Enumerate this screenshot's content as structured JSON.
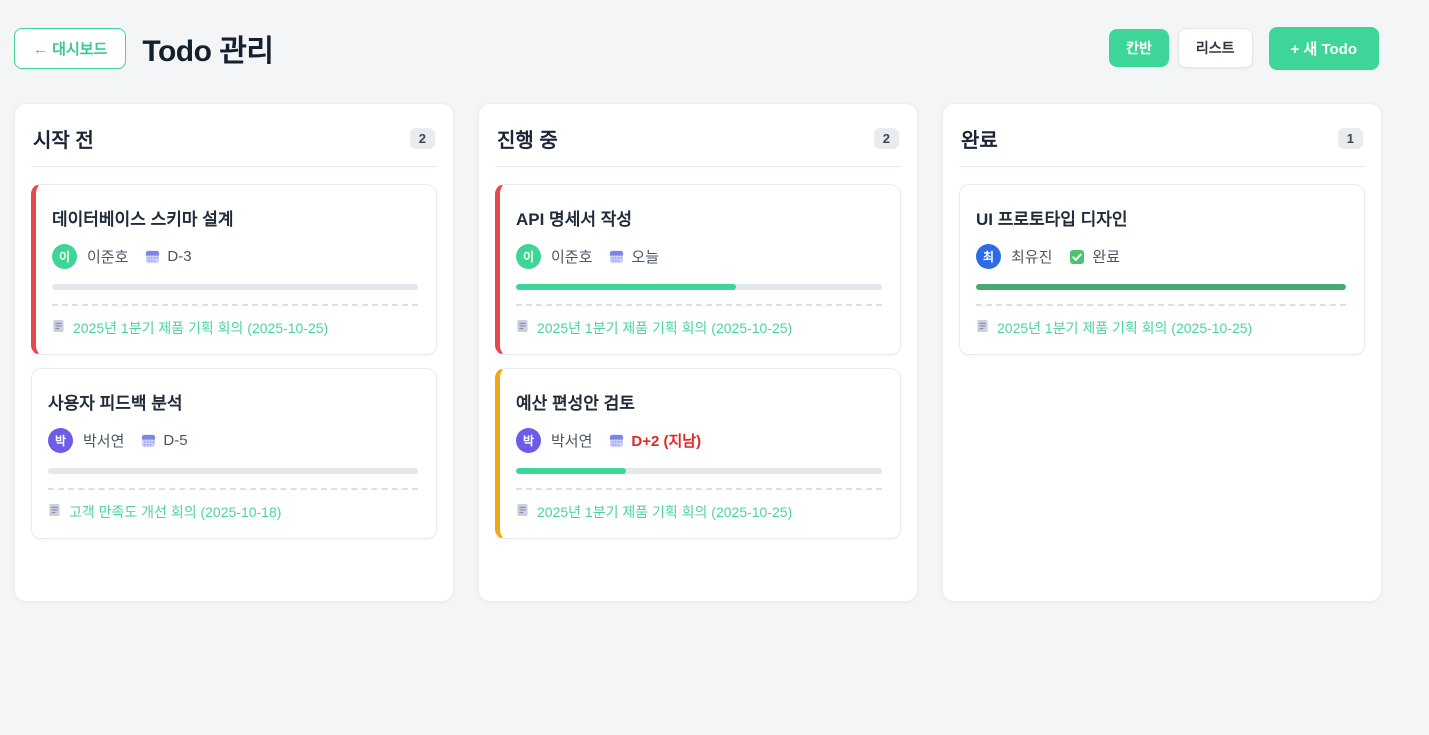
{
  "header": {
    "back_label": "← 대시보드",
    "title": "Todo 관리",
    "view_kanban_label": "칸반",
    "view_list_label": "리스트",
    "new_todo_label": "+ 새 Todo"
  },
  "colors": {
    "accent_mint": "#3ed598",
    "overdue_red": "#e12626",
    "card_accent_red": "#e5484d",
    "card_accent_amber": "#f2a516",
    "progress_done_green": "#48a873",
    "avatar_green": "#3ed598",
    "avatar_purple": "#6c5ce7",
    "avatar_blue": "#2d6ce5"
  },
  "icons": {
    "calendar": "calendar-grid",
    "memo": "document-page",
    "check": "green-checkbox"
  },
  "board": {
    "columns": [
      {
        "title": "시작 전",
        "count": "2",
        "cards": [
          {
            "title": "데이터베이스 스키마 설계",
            "avatar": "이",
            "avatar_color": "#3ed598",
            "assignee": "이준호",
            "due": "D-3",
            "overdue": false,
            "progress": 0,
            "progress_color": "#3ed598",
            "accent": "#e5484d",
            "memo": "2025년 1분기 제품 기획 회의 (2025-10-25)"
          },
          {
            "title": "사용자 피드백 분석",
            "avatar": "박",
            "avatar_color": "#6c5ce7",
            "assignee": "박서연",
            "due": "D-5",
            "overdue": false,
            "progress": 0,
            "progress_color": "#3ed598",
            "accent": null,
            "memo": "고객 만족도 개선 회의 (2025-10-18)"
          }
        ]
      },
      {
        "title": "진행 중",
        "count": "2",
        "cards": [
          {
            "title": "API 명세서 작성",
            "avatar": "이",
            "avatar_color": "#3ed598",
            "assignee": "이준호",
            "due": "오늘",
            "overdue": false,
            "progress": 60,
            "progress_color": "#3ed598",
            "accent": "#e5484d",
            "memo": "2025년 1분기 제품 기획 회의 (2025-10-25)"
          },
          {
            "title": "예산 편성안 검토",
            "avatar": "박",
            "avatar_color": "#6c5ce7",
            "assignee": "박서연",
            "due": "D+2 (지남)",
            "overdue": true,
            "progress": 30,
            "progress_color": "#3ed598",
            "accent": "#f2a516",
            "memo": "2025년 1분기 제품 기획 회의 (2025-10-25)"
          }
        ]
      },
      {
        "title": "완료",
        "count": "1",
        "cards": [
          {
            "title": "UI 프로토타입 디자인",
            "avatar": "최",
            "avatar_color": "#2d6ce5",
            "assignee": "최유진",
            "due": "완료",
            "overdue": false,
            "done": true,
            "progress": 100,
            "progress_color": "#48a873",
            "accent": null,
            "memo": "2025년 1분기 제품 기획 회의 (2025-10-25)"
          }
        ]
      }
    ]
  }
}
